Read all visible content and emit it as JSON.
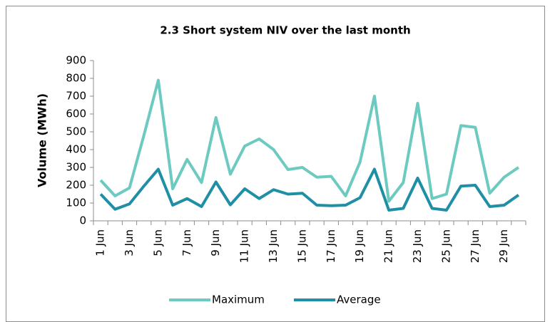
{
  "chart_data": {
    "type": "line",
    "title": "2.3 Short system NIV over the last month",
    "ylabel": "Volume (MWh)",
    "categories": [
      "1 Jun",
      null,
      "3 Jun",
      null,
      "5 Jun",
      null,
      "7 Jun",
      null,
      "9 Jun",
      null,
      "11 Jun",
      null,
      "13 Jun",
      null,
      "15 Jun",
      null,
      "17 Jun",
      null,
      "19 Jun",
      null,
      "21 Jun",
      null,
      "23 Jun",
      null,
      "25 Jun",
      null,
      "27 Jun",
      null,
      "29 Jun",
      null
    ],
    "series": [
      {
        "name": "Maximum",
        "color": "#6ccac1",
        "values": [
          228,
          140,
          185,
          480,
          790,
          180,
          345,
          215,
          580,
          262,
          420,
          460,
          400,
          288,
          300,
          245,
          250,
          140,
          330,
          700,
          110,
          215,
          660,
          125,
          150,
          535,
          525,
          155,
          245,
          300
        ]
      },
      {
        "name": "Average",
        "color": "#1f8fa6",
        "values": [
          150,
          65,
          95,
          195,
          290,
          88,
          125,
          80,
          218,
          90,
          180,
          125,
          175,
          150,
          155,
          88,
          85,
          88,
          130,
          290,
          60,
          70,
          240,
          70,
          60,
          195,
          200,
          80,
          88,
          145
        ]
      }
    ],
    "ylim": [
      0,
      900
    ],
    "yticks": [
      0,
      100,
      200,
      300,
      400,
      500,
      600,
      700,
      800,
      900
    ],
    "legend": "bottom"
  }
}
